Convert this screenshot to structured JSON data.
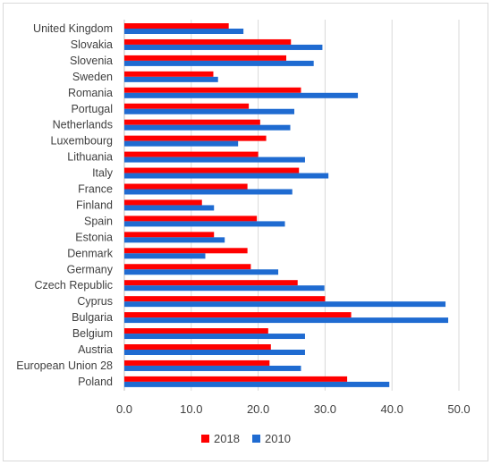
{
  "chart_data": {
    "type": "bar",
    "orientation": "horizontal",
    "categories": [
      "United Kingdom",
      "Slovakia",
      "Slovenia",
      "Sweden",
      "Romania",
      "Portugal",
      "Netherlands",
      "Luxembourg",
      "Lithuania",
      "Italy",
      "France",
      "Finland",
      "Spain",
      "Estonia",
      "Denmark",
      "Germany",
      "Czech Republic",
      "Cyprus",
      "Bulgaria",
      "Belgium",
      "Austria",
      "European Union 28",
      "Poland"
    ],
    "series": [
      {
        "name": "2018",
        "color": "#ff0000",
        "values": [
          15.6,
          24.9,
          24.2,
          13.3,
          26.4,
          18.6,
          20.3,
          21.2,
          20.0,
          26.1,
          18.4,
          11.6,
          19.8,
          13.4,
          18.4,
          18.9,
          25.9,
          30.0,
          33.9,
          21.5,
          21.9,
          21.7,
          33.3
        ]
      },
      {
        "name": "2010",
        "color": "#1f6bd1",
        "values": [
          17.8,
          29.6,
          28.3,
          14.0,
          34.9,
          25.4,
          24.8,
          17.0,
          27.0,
          30.5,
          25.1,
          13.4,
          24.0,
          15.0,
          12.1,
          23.0,
          29.9,
          48.0,
          48.4,
          27.0,
          27.0,
          26.4,
          39.6
        ]
      }
    ],
    "xlim": [
      0,
      50
    ],
    "xticks": [
      "0.0",
      "10.0",
      "20.0",
      "30.0",
      "40.0",
      "50.0"
    ],
    "grid": true,
    "legend_position": "bottom",
    "title": "",
    "xlabel": "",
    "ylabel": ""
  }
}
